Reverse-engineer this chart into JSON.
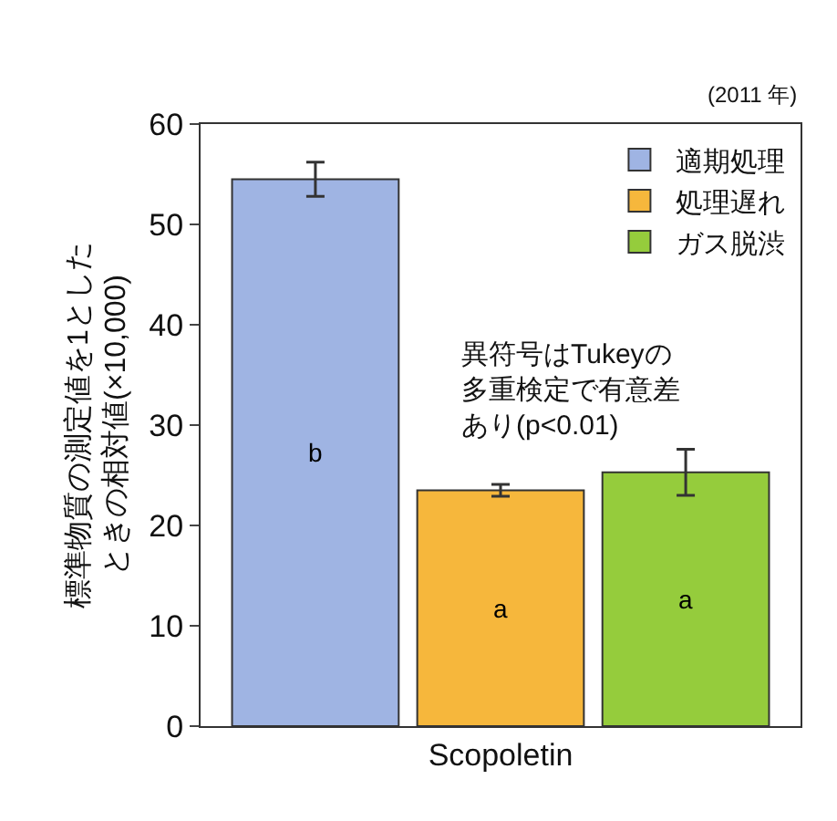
{
  "chart_data": {
    "type": "bar",
    "categories": [
      null,
      "Scopoletin",
      null
    ],
    "ylabel": "標準物質の測定値を1としたときの相対値(×10,000)",
    "series": [
      {
        "name": "適期処理",
        "color": "#9fb4e3",
        "values": [
          54.5,
          null,
          null
        ],
        "errors": [
          1.7,
          null,
          null
        ],
        "value_labels": [
          "b",
          null,
          null
        ]
      },
      {
        "name": "処理遅れ",
        "color": "#f6b73c",
        "values": [
          null,
          23.5,
          null
        ],
        "errors": [
          null,
          0.6,
          null
        ],
        "value_labels": [
          null,
          "a",
          null
        ]
      },
      {
        "name": "ガス脱渋",
        "color": "#95cc3c",
        "values": [
          null,
          null,
          25.3
        ],
        "errors": [
          null,
          null,
          2.3
        ],
        "value_labels": [
          null,
          null,
          "a"
        ]
      }
    ],
    "ylim": [
      0,
      60
    ],
    "yticks": [
      0,
      10,
      20,
      30,
      40,
      50,
      60
    ],
    "grid": false,
    "legend": "top right",
    "annotations": [
      "(2011 年)",
      "異符号はTukeyの多重検定で有意差あり(p<0.01)"
    ]
  }
}
